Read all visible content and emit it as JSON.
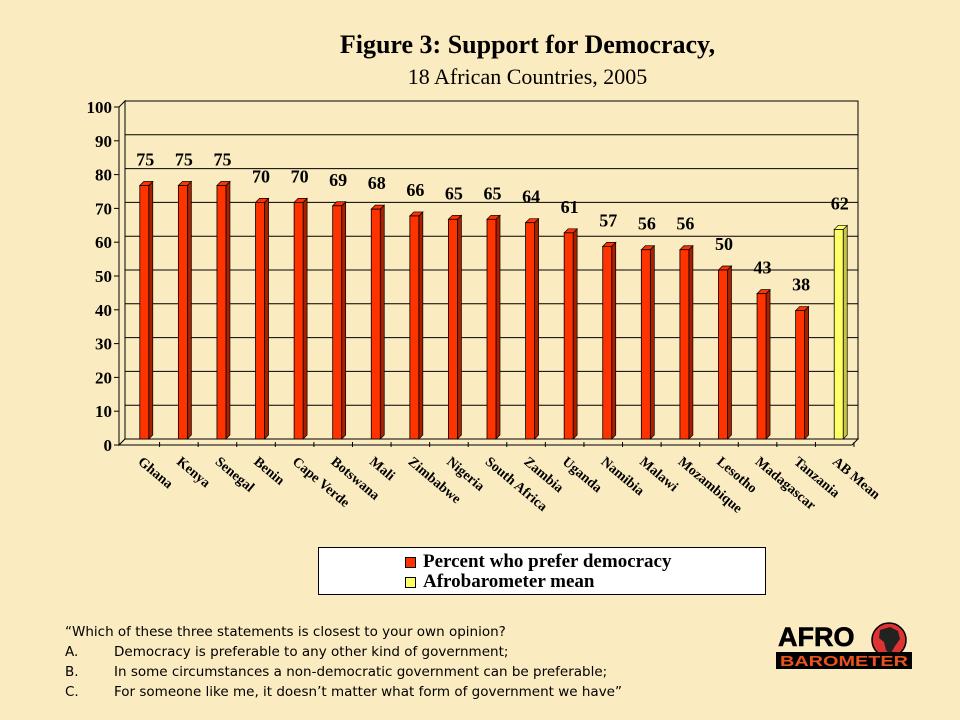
{
  "title": "Figure 3:  Support for Democracy,",
  "subtitle": "18 African Countries, 2005",
  "chart_data": {
    "type": "bar",
    "categories": [
      "Ghana",
      "Kenya",
      "Senegal",
      "Benin",
      "Cape Verde",
      "Botswana",
      "Mali",
      "Zimbabwe",
      "Nigeria",
      "South Africa",
      "Zambia",
      "Uganda",
      "Namibia",
      "Malawi",
      "Mozambique",
      "Lesotho",
      "Madagascar",
      "Tanzania",
      "AB Mean"
    ],
    "series": [
      {
        "name": "Percent who prefer democracy",
        "color": "#FF3300",
        "values": [
          75,
          75,
          75,
          70,
          70,
          69,
          68,
          66,
          65,
          65,
          64,
          61,
          57,
          56,
          56,
          50,
          43,
          38,
          null
        ]
      },
      {
        "name": "Afrobarometer mean",
        "color": "#FFFF66",
        "values": [
          null,
          null,
          null,
          null,
          null,
          null,
          null,
          null,
          null,
          null,
          null,
          null,
          null,
          null,
          null,
          null,
          null,
          null,
          62
        ]
      }
    ],
    "ylim": [
      0,
      100
    ],
    "yticks": [
      "0",
      "10",
      "20",
      "30",
      "40",
      "50",
      "60",
      "70",
      "80",
      "90",
      "100"
    ],
    "grid": true,
    "legend_position": "bottom"
  },
  "note": {
    "question": "“Which of these three statements is closest to your own opinion?",
    "options": [
      {
        "letter": "A.",
        "text": "Democracy is preferable to any other kind of government;"
      },
      {
        "letter": "B.",
        "text": "In some circumstances a non-democratic government can be preferable;"
      },
      {
        "letter": "C.",
        "text": "For someone like me, it doesn’t matter what form of government we have”"
      }
    ]
  },
  "logo": {
    "line1": "AFRO",
    "line2": "BAROMETER"
  }
}
